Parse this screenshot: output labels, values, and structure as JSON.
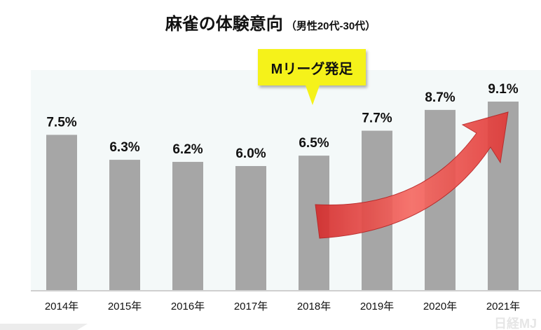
{
  "chart_data": {
    "type": "bar",
    "title": "麻雀の体験意向",
    "subtitle": "（男性20代-30代）",
    "categories": [
      "2014年",
      "2015年",
      "2016年",
      "2017年",
      "2018年",
      "2019年",
      "2020年",
      "2021年"
    ],
    "values": [
      7.5,
      6.3,
      6.2,
      6.0,
      6.5,
      7.7,
      8.7,
      9.1
    ],
    "data_labels": [
      "7.5%",
      "6.3%",
      "6.2%",
      "6.0%",
      "6.5%",
      "7.7%",
      "8.7%",
      "9.1%"
    ],
    "ylim": [
      0,
      9.1
    ],
    "grid": false,
    "bar_color": "#a6a6a6",
    "annotation": {
      "text": "Mリーグ発足",
      "category": "2018年",
      "color": "#f5f21a"
    },
    "trend_arrow": {
      "from": "2018年",
      "to": "2021年",
      "color": "#e8403e"
    }
  },
  "watermark": "日経MJ"
}
